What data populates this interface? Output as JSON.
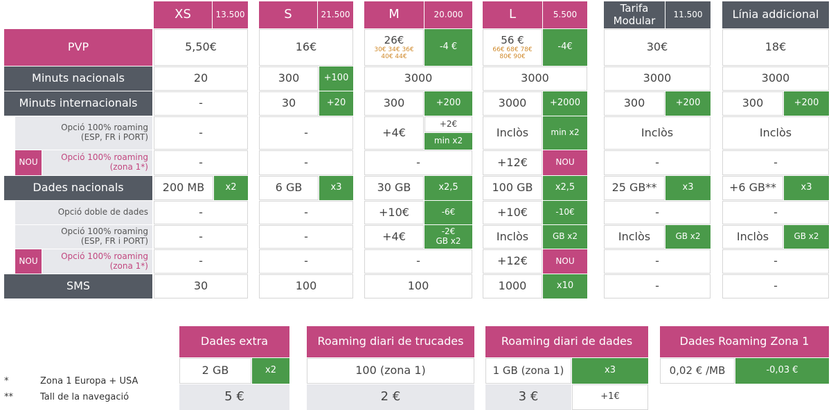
{
  "plans": [
    {
      "name": "XS",
      "num": "13.500"
    },
    {
      "name": "S",
      "num": "21.500"
    },
    {
      "name": "M",
      "num": "20.000"
    },
    {
      "name": "L",
      "num": "5.500"
    },
    {
      "name": "Tarifa\nModular",
      "num": "11.500"
    },
    {
      "name": "Línia addicional"
    }
  ],
  "rows": {
    "pvp": "PVP",
    "min_nac": "Minuts nacionals",
    "min_int": "Minuts internacionals",
    "roam_esp": "Opció 100% roaming\n(ESP, FR i PORT)",
    "roam_zona": "Opció 100% roaming\n(zona 1*)",
    "dades": "Dades nacionals",
    "doble": "Opció doble de dades",
    "sms": "SMS",
    "nou": "NOU"
  },
  "pvp": {
    "xs": "5,50€",
    "s": "16€",
    "m": "26€",
    "m_small": "30€ 34€ 36€\n40€ 44€",
    "m_g": "-4 €",
    "l": "56 €",
    "l_small": "66€ 68€ 78€\n80€ 90€",
    "l_g": "-4€",
    "mod": "30€",
    "lin": "18€"
  },
  "mn": {
    "xs": "20",
    "s": "300",
    "s_g": "+100",
    "m": "3000",
    "l": "3000",
    "mod": "3000",
    "lin": "3000"
  },
  "mi": {
    "xs": "-",
    "s": "30",
    "s_g": "+20",
    "m": "300",
    "m_g": "+200",
    "l": "3000",
    "l_g": "+2000",
    "mod": "300",
    "mod_g": "+200",
    "lin": "300",
    "lin_g": "+200"
  },
  "re": {
    "xs": "-",
    "s": "-",
    "m": "+4€",
    "m_g1": "+2€",
    "m_g2": "min x2",
    "l": "Inclòs",
    "l_g": "min x2",
    "mod": "Inclòs",
    "lin": "Inclòs"
  },
  "rz": {
    "xs": "-",
    "s": "-",
    "m": "-",
    "l": "+12€",
    "l_p": "NOU",
    "mod": "-",
    "lin": "-"
  },
  "dn": {
    "xs": "200 MB",
    "xs_g": "x2",
    "s": "6 GB",
    "s_g": "x3",
    "m": "30 GB",
    "m_g": "x2,5",
    "l": "100 GB",
    "l_g": "x2,5",
    "mod": "25 GB**",
    "mod_g": "x3",
    "lin": "+6 GB**",
    "lin_g": "x3"
  },
  "dd": {
    "xs": "-",
    "s": "-",
    "m": "+10€",
    "m_g": "-6€",
    "l": "+10€",
    "l_g": "-10€",
    "mod": "-",
    "lin": "-"
  },
  "re2": {
    "xs": "-",
    "s": "-",
    "m": "+4€",
    "m_g": "-2€\nGB x2",
    "l": "Inclòs",
    "l_g": "GB x2",
    "mod": "Inclòs",
    "mod_g": "GB x2",
    "lin": "Inclòs",
    "lin_g": "GB x2"
  },
  "rz2": {
    "xs": "-",
    "s": "-",
    "m": "-",
    "l": "+12€",
    "l_p": "NOU",
    "mod": "-",
    "lin": "-"
  },
  "sms": {
    "xs": "30",
    "s": "100",
    "m": "100",
    "l": "1000",
    "l_g": "x10",
    "mod": "-",
    "lin": "-"
  },
  "extras": [
    {
      "title": "Dades extra",
      "v1": "2 GB",
      "g1": "x2",
      "v2": "5 €"
    },
    {
      "title": "Roaming diari de trucades",
      "v1": "100 (zona 1)",
      "v2": "2 €"
    },
    {
      "title": "Roaming diari de dades",
      "v1": "1 GB (zona 1)",
      "g1": "x3",
      "v2": "3 €",
      "g2": "+1€"
    },
    {
      "title": "Dades Roaming Zona 1",
      "v1": "0,02 € /MB",
      "g1": "-0,03 €"
    }
  ],
  "footnotes": [
    {
      "mark": "*",
      "text": "Zona 1 Europa + USA"
    },
    {
      "mark": "**",
      "text": "Tall de la navegació"
    }
  ],
  "colors": {
    "pink": "#c2477f",
    "grey": "#545a63",
    "green": "#4a9a4a",
    "light": "#e7e8ec"
  }
}
